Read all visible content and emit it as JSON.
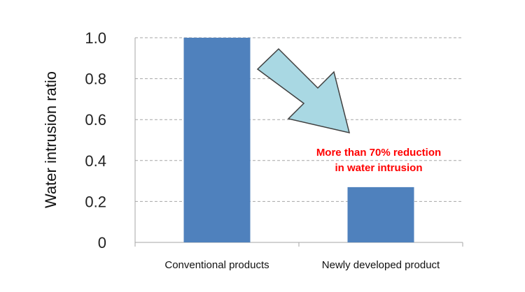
{
  "chart_data": {
    "type": "bar",
    "categories": [
      "Conventional products",
      "Newly developed product"
    ],
    "values": [
      1.0,
      0.27
    ],
    "ylabel": "Water intrusion ratio",
    "xlabel": "",
    "ylim": [
      0,
      1.0
    ],
    "yticks": [
      0,
      0.2,
      0.4,
      0.6,
      0.8,
      1.0
    ],
    "ytick_labels": [
      "0",
      "0.2",
      "0.4",
      "0.6",
      "0.8",
      "1.0"
    ],
    "grid": true,
    "annotation": [
      "More than 70% reduction",
      "in water intrusion"
    ]
  },
  "colors": {
    "bar": "#4f81bd",
    "grid": "#a6a6a6",
    "axis": "#a6a6a6",
    "arrow_fill": "#a9d8e3",
    "arrow_stroke": "#404040",
    "annotation": "#ff0000"
  }
}
